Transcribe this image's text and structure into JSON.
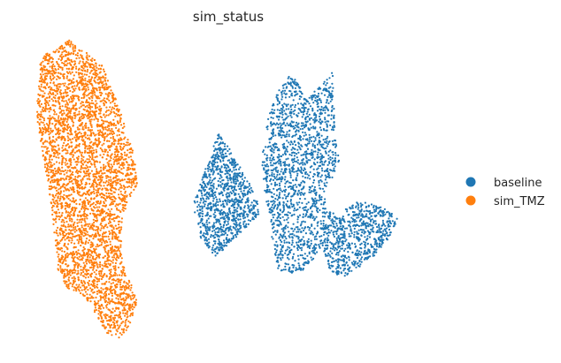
{
  "chart_data": {
    "type": "scatter",
    "title": "sim_status",
    "xlabel": "",
    "ylabel": "",
    "xlim": [
      0,
      100
    ],
    "ylim": [
      0,
      100
    ],
    "grid": false,
    "axes_visible": false,
    "legend_position": "right",
    "point_size": "small",
    "series": [
      {
        "name": "baseline",
        "color": "#1f77b4",
        "clusters": [
          {
            "polygon": [
              [
                42.0,
                47.0
              ],
              [
                47.5,
                69.0
              ],
              [
                50.5,
                63.0
              ],
              [
                55.0,
                52.0
              ],
              [
                57.5,
                43.0
              ],
              [
                52.5,
                36.0
              ],
              [
                47.0,
                28.0
              ],
              [
                43.5,
                34.0
              ],
              [
                42.0,
                43.0
              ]
            ],
            "count": 950
          },
          {
            "polygon": [
              [
                57.5,
                61.0
              ],
              [
                59.0,
                74.0
              ],
              [
                61.0,
                83.0
              ],
              [
                64.5,
                89.0
              ],
              [
                68.0,
                80.0
              ],
              [
                71.5,
                86.0
              ],
              [
                74.0,
                89.5
              ],
              [
                74.5,
                67.0
              ],
              [
                75.5,
                60.0
              ],
              [
                72.5,
                50.0
              ],
              [
                71.0,
                30.0
              ],
              [
                66.0,
                22.0
              ],
              [
                61.0,
                24.0
              ],
              [
                59.5,
                38.0
              ],
              [
                58.0,
                52.0
              ]
            ],
            "count": 1550
          },
          {
            "polygon": [
              [
                71.5,
                45.0
              ],
              [
                75.0,
                42.0
              ],
              [
                80.0,
                47.0
              ],
              [
                86.0,
                44.0
              ],
              [
                89.0,
                41.0
              ],
              [
                86.5,
                33.0
              ],
              [
                82.5,
                27.0
              ],
              [
                76.0,
                21.0
              ],
              [
                73.0,
                24.0
              ],
              [
                71.5,
                32.0
              ]
            ],
            "count": 700
          }
        ]
      },
      {
        "name": "sim_TMZ",
        "color": "#ff7f0e",
        "clusters": [
          {
            "polygon": [
              [
                5.5,
                75.0
              ],
              [
                6.5,
                94.0
              ],
              [
                13.0,
                100.0
              ],
              [
                20.5,
                92.0
              ],
              [
                23.5,
                82.0
              ],
              [
                26.0,
                72.0
              ],
              [
                28.0,
                62.0
              ],
              [
                29.0,
                52.0
              ],
              [
                26.5,
                46.5
              ],
              [
                25.0,
                36.0
              ],
              [
                25.5,
                26.0
              ],
              [
                29.0,
                13.0
              ],
              [
                27.0,
                5.0
              ],
              [
                24.5,
                1.0
              ],
              [
                21.5,
                3.0
              ],
              [
                18.5,
                11.0
              ],
              [
                15.5,
                16.0
              ],
              [
                12.5,
                18.0
              ],
              [
                10.5,
                24.0
              ],
              [
                9.5,
                38.0
              ],
              [
                8.5,
                50.0
              ],
              [
                7.0,
                62.0
              ]
            ],
            "count": 3800
          }
        ]
      }
    ]
  }
}
